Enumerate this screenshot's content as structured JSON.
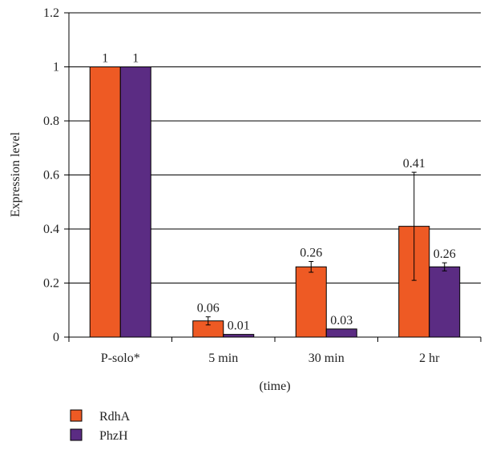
{
  "chart_data": {
    "type": "bar",
    "categories": [
      "P-solo*",
      "5 min",
      "30 min",
      "2 hr"
    ],
    "series": [
      {
        "name": "RdhA",
        "color": "#EE5A24",
        "values": [
          1,
          0.06,
          0.26,
          0.41
        ],
        "error": [
          0,
          0.015,
          0.02,
          0.2
        ],
        "labels": [
          "1",
          "0.06",
          "0.26",
          "0.41"
        ]
      },
      {
        "name": "PhzH",
        "color": "#5B2C83",
        "values": [
          1,
          0.01,
          0.03,
          0.26
        ],
        "error": [
          0,
          0,
          0,
          0.015
        ],
        "labels": [
          "1",
          "0.01",
          "0.03",
          "0.26"
        ]
      }
    ],
    "xlabel": "(time)",
    "ylabel": "Expression level",
    "ylim": [
      0,
      1.2
    ],
    "yticks": [
      "0",
      "0.2",
      "0.4",
      "0.6",
      "0.8",
      "1",
      "1.2"
    ],
    "grid": true,
    "legend_position": "bottom-left"
  }
}
